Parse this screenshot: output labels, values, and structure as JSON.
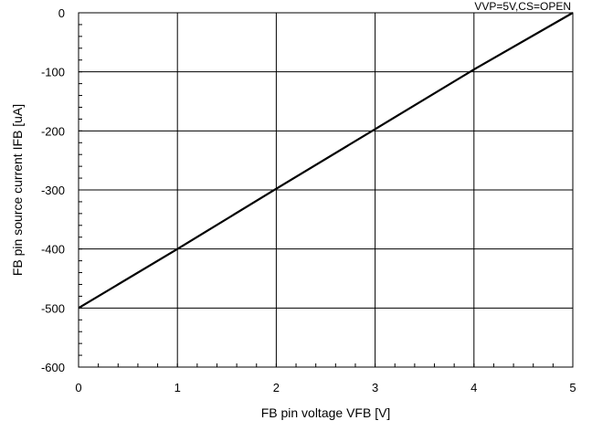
{
  "chart_data": {
    "type": "line",
    "title": "",
    "condition_label": "VVP=5V,CS=OPEN",
    "xlabel": "FB pin voltage VFB [V]",
    "ylabel": "FB pin source current IFB [uA]",
    "xlim": [
      0,
      5
    ],
    "ylim": [
      -600,
      0
    ],
    "x_ticks": [
      0,
      1,
      2,
      3,
      4,
      5
    ],
    "y_ticks": [
      0,
      -100,
      -200,
      -300,
      -400,
      -500,
      -600
    ],
    "x_tick_labels": [
      "0",
      "1",
      "2",
      "3",
      "4",
      "5"
    ],
    "y_tick_labels": [
      "0",
      "-100",
      "-200",
      "-300",
      "-400",
      "-500",
      "-600"
    ],
    "grid": true,
    "series": [
      {
        "x": [
          0,
          1,
          2,
          3,
          4,
          5
        ],
        "y": [
          -500,
          -400,
          -298,
          -197,
          -96,
          0
        ],
        "color": "#000000"
      }
    ]
  }
}
